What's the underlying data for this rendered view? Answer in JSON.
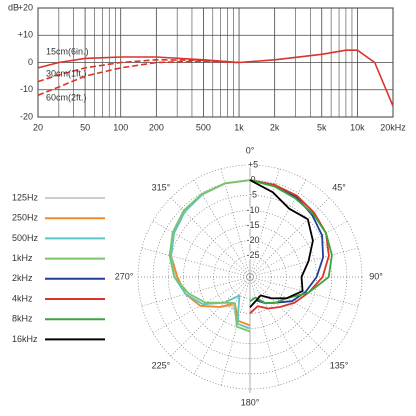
{
  "chart_data": [
    {
      "type": "line",
      "ylabel": "dB",
      "xscale": "log",
      "xlim": [
        20,
        20000
      ],
      "ylim": [
        -20,
        20
      ],
      "xticks": [
        20,
        50,
        100,
        200,
        500,
        {
          "value": 1000,
          "label": "1k"
        },
        {
          "value": 2000,
          "label": "2k"
        },
        {
          "value": 5000,
          "label": "5k"
        },
        {
          "value": 10000,
          "label": "10k"
        },
        {
          "value": 20000,
          "label": "20kHz"
        }
      ],
      "xgrid_minor": [
        30,
        40,
        60,
        70,
        80,
        90,
        300,
        400,
        600,
        700,
        800,
        900,
        3000,
        4000,
        6000,
        7000,
        8000,
        9000
      ],
      "yticks": [
        {
          "value": 20,
          "label": "+20"
        },
        {
          "value": 10,
          "label": "+10"
        },
        0,
        -10,
        -20
      ],
      "grid": true,
      "x": [
        20,
        30,
        50,
        100,
        200,
        500,
        1000,
        2000,
        5000,
        8000,
        10000,
        14000,
        20000
      ],
      "series": [
        {
          "name": "15cm(6in.)",
          "color": "#d9342b",
          "dashed": false,
          "values": [
            -2,
            0,
            1.5,
            2,
            2,
            1,
            0,
            1,
            3,
            4.5,
            4.5,
            0,
            -16
          ]
        },
        {
          "name": "30cm(1ft.)",
          "color": "#d9342b",
          "dashed": true,
          "values": [
            -7,
            -4.5,
            -2,
            0,
            1,
            0.8,
            0,
            null,
            null,
            null,
            null,
            null,
            null
          ]
        },
        {
          "name": "60cm(2ft.)",
          "color": "#d9342b",
          "dashed": true,
          "values": [
            -12,
            -9,
            -5,
            -2,
            0,
            0.5,
            0,
            null,
            null,
            null,
            null,
            null,
            null
          ]
        }
      ]
    },
    {
      "type": "polar",
      "rlim": [
        -32,
        5
      ],
      "rticks": [
        {
          "value": 5,
          "label": "+5"
        },
        0,
        -5,
        -10,
        -15,
        -20,
        -25
      ],
      "thetaticks": [
        {
          "value": 0,
          "label": "0°"
        },
        {
          "value": 45,
          "label": "45°"
        },
        {
          "value": 90,
          "label": "90°"
        },
        {
          "value": 135,
          "label": "135°"
        },
        {
          "value": 180,
          "label": "180°"
        },
        {
          "value": 225,
          "label": "225°"
        },
        {
          "value": 270,
          "label": "270°"
        },
        {
          "value": 315,
          "label": "315°"
        }
      ],
      "legend": "left",
      "series": [
        {
          "name": "125Hz",
          "color": "#cccccc",
          "theta": [
            180,
            195,
            210,
            225,
            240,
            255,
            270,
            285,
            300,
            315,
            330,
            345,
            360
          ],
          "values": [
            -15,
            -16,
            -21,
            -18,
            -13,
            -10,
            -7.5,
            -5,
            -3,
            -1.5,
            -0.5,
            0,
            0
          ]
        },
        {
          "name": "250Hz",
          "color": "#f0892a",
          "theta": [
            180,
            195,
            210,
            225,
            240,
            255,
            270,
            285,
            300,
            315,
            330,
            345,
            360
          ],
          "values": [
            -16,
            -17,
            -22,
            -18,
            -13,
            -10,
            -8,
            -5,
            -3,
            -1.5,
            -0.5,
            0,
            0
          ]
        },
        {
          "name": "500Hz",
          "color": "#5cc6c6",
          "theta": [
            180,
            195,
            210,
            225,
            240,
            255,
            270,
            285,
            300,
            315,
            330,
            345,
            360
          ],
          "values": [
            -15,
            -16,
            -25,
            -20,
            -14,
            -10,
            -7,
            -5,
            -3,
            -1.5,
            -0.5,
            0,
            0
          ]
        },
        {
          "name": "1kHz",
          "color": "#7cc46a",
          "theta": [
            180,
            195,
            210,
            225,
            240,
            255,
            270,
            285,
            300,
            315,
            330,
            345,
            360
          ],
          "values": [
            -14,
            -15,
            -22,
            -20,
            -15,
            -11,
            -7,
            -4.5,
            -2.5,
            -1,
            -0.3,
            0,
            0
          ]
        },
        {
          "name": "2kHz",
          "color": "#1f3f99",
          "theta": [
            0,
            15,
            30,
            45,
            60,
            75,
            90,
            105,
            120,
            135,
            150,
            165,
            180
          ],
          "values": [
            0,
            -0.5,
            -1.5,
            -3,
            -4.5,
            -7,
            -10,
            -13,
            -16,
            -20,
            -22,
            -24,
            -22
          ]
        },
        {
          "name": "4kHz",
          "color": "#d9342b",
          "theta": [
            0,
            15,
            30,
            45,
            60,
            75,
            90,
            105,
            120,
            135,
            150,
            165,
            180
          ],
          "values": [
            0,
            -0.5,
            -1,
            -2,
            -3,
            -5,
            -8,
            -12,
            -15,
            -18,
            -20,
            -22,
            -20
          ]
        },
        {
          "name": "8kHz",
          "color": "#3aa53a",
          "theta": [
            0,
            15,
            30,
            45,
            60,
            75,
            90,
            105,
            120,
            135,
            150,
            165,
            180
          ],
          "values": [
            0,
            -1,
            -2,
            -2.5,
            -3,
            -4,
            -6,
            -12,
            -18,
            -20,
            -22,
            -25,
            -24
          ]
        },
        {
          "name": "16kHz",
          "color": "#000000",
          "theta": [
            0,
            15,
            30,
            45,
            60,
            75,
            90,
            105,
            120,
            135,
            150,
            165,
            180
          ],
          "values": [
            0,
            -3,
            -6,
            -5,
            -8,
            -12,
            -15,
            -14,
            -18,
            -22,
            -25,
            -24,
            -22
          ]
        }
      ]
    }
  ]
}
